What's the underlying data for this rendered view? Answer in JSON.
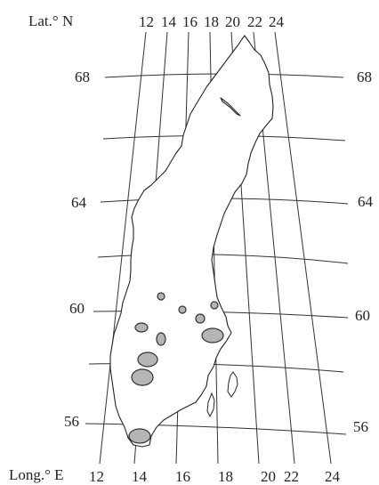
{
  "lat_axis_title": "Lat.° N",
  "long_axis_title": "Long.° E",
  "latitudes": [
    {
      "value": "68",
      "left": "68",
      "right": "68"
    },
    {
      "value": "64",
      "left": "64",
      "right": "64"
    },
    {
      "value": "60",
      "left": "60",
      "right": "60"
    },
    {
      "value": "56",
      "left": "56",
      "right": "56"
    }
  ],
  "longitudes_top": [
    "12",
    "14",
    "16",
    "18",
    "20",
    "22",
    "24"
  ],
  "longitudes_bottom": [
    "12",
    "14",
    "16",
    "18",
    "20",
    "22",
    "24"
  ],
  "colors": {
    "site_fill": "#b5b5b5",
    "line": "#333333"
  }
}
